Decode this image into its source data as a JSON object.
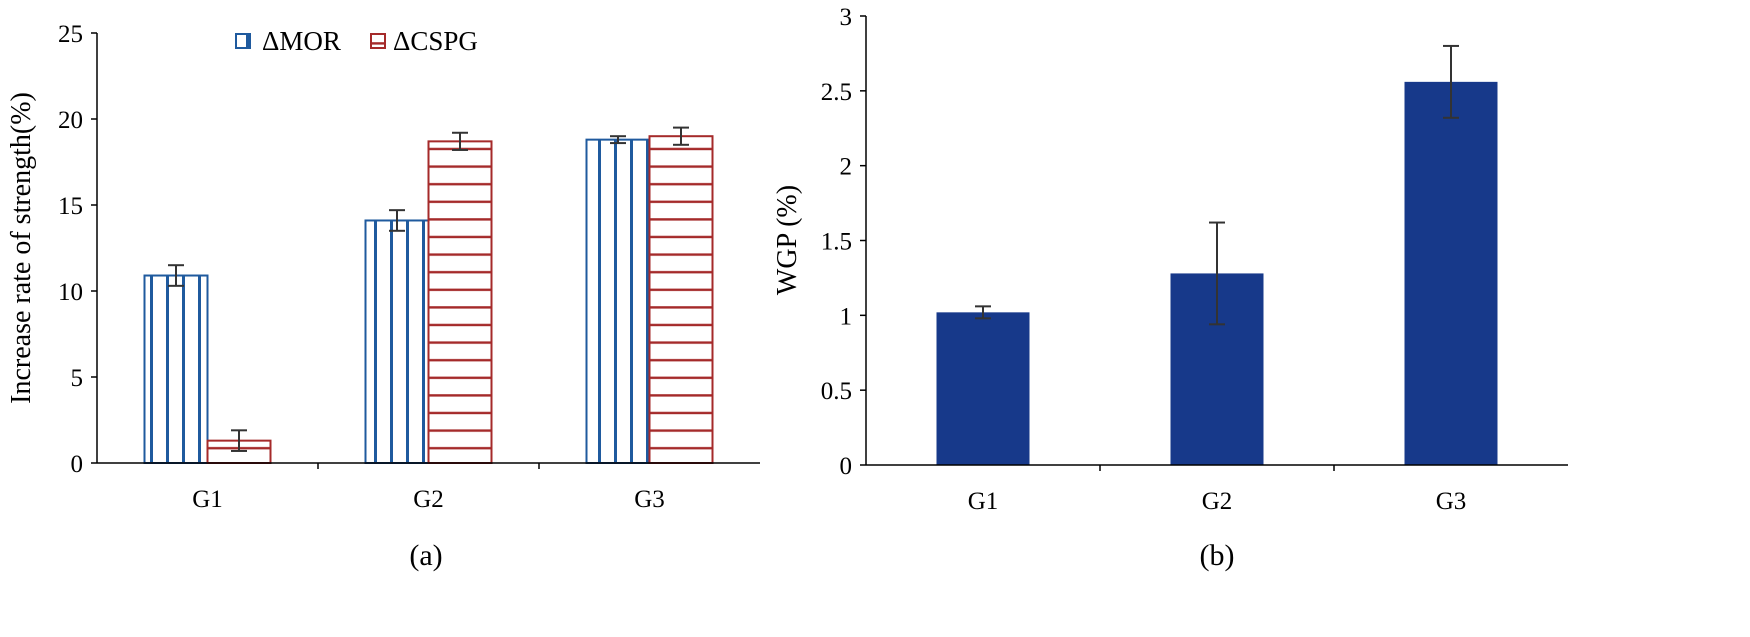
{
  "colors": {
    "mor": "#1f5a9e",
    "cspg": "#a52a2a",
    "wgp": "#17398a",
    "error": "#333333",
    "axis": "#000000"
  },
  "chart_data": [
    {
      "type": "bar",
      "panel_label": "(a)",
      "title": "",
      "xlabel": "",
      "ylabel": "Increase rate of strength(%)",
      "categories": [
        "G1",
        "G2",
        "G3"
      ],
      "ylim": [
        0,
        25
      ],
      "yticks": [
        0,
        5,
        10,
        15,
        20,
        25
      ],
      "ytick_labels": [
        "0",
        "5",
        "10",
        "15",
        "20",
        "25"
      ],
      "legend_position": "top",
      "grid": false,
      "series": [
        {
          "name": "ΔMOR",
          "pattern": "vertical-lines",
          "values": [
            10.9,
            14.1,
            18.8
          ],
          "errors": [
            0.6,
            0.6,
            0.2
          ]
        },
        {
          "name": "ΔCSPG",
          "pattern": "horizontal-lines",
          "values": [
            1.3,
            18.7,
            19.0
          ],
          "errors": [
            0.6,
            0.5,
            0.5
          ]
        }
      ]
    },
    {
      "type": "bar",
      "panel_label": "(b)",
      "title": "",
      "xlabel": "",
      "ylabel": "WGP (%)",
      "categories": [
        "G1",
        "G2",
        "G3"
      ],
      "ylim": [
        0,
        3
      ],
      "yticks": [
        0,
        0.5,
        1,
        1.5,
        2,
        2.5,
        3
      ],
      "ytick_labels": [
        "0",
        "0.5",
        "1",
        "1.5",
        "2",
        "2.5",
        "3"
      ],
      "grid": false,
      "series": [
        {
          "name": "WGP",
          "values": [
            1.02,
            1.28,
            2.56
          ],
          "errors": [
            0.04,
            0.34,
            0.24
          ]
        }
      ]
    }
  ]
}
